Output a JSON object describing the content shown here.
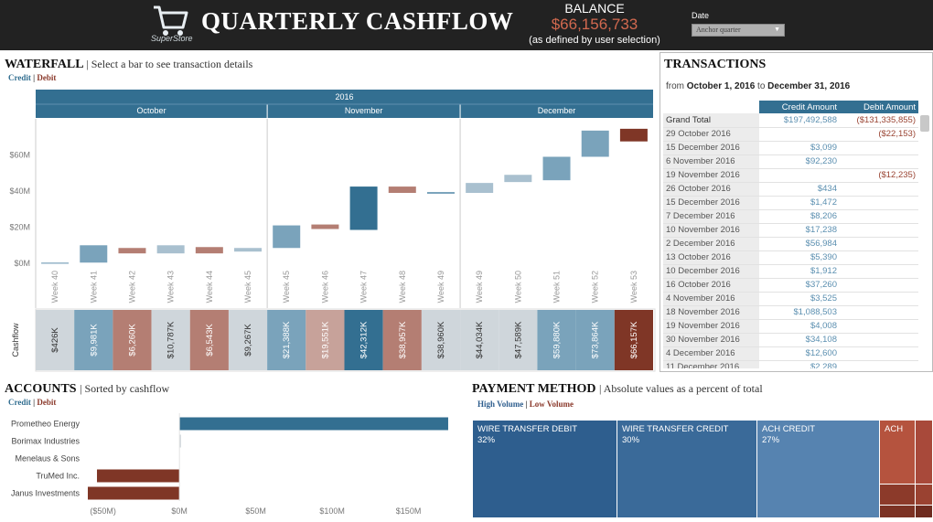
{
  "header": {
    "logo_text": "SuperStore",
    "title": "QUARTERLY CASHFLOW",
    "balance_label": "BALANCE",
    "balance_value": "$66,156,733",
    "balance_note": "(as defined by user selection)",
    "date_label": "Date",
    "date_selected": "Anchor quarter"
  },
  "waterfall": {
    "title": "WATERFALL",
    "subtitle": "| Select a bar to see transaction details",
    "legend_credit": "Credit",
    "legend_sep": "|",
    "legend_debit": "Debit",
    "year": "2016",
    "months": [
      "October",
      "November",
      "December"
    ],
    "row_label": "Cashflow"
  },
  "chart_data": [
    {
      "type": "bar",
      "subtype": "waterfall",
      "categories": [
        "Week 40",
        "Week 41",
        "Week 42",
        "Week 43",
        "Week 44",
        "Week 45",
        "Week 45",
        "Week 46",
        "Week 47",
        "Week 48",
        "Week 49",
        "Week 49",
        "Week 50",
        "Week 51",
        "Week 52",
        "Week 53"
      ],
      "months": [
        "October",
        "October",
        "October",
        "October",
        "October",
        "October",
        "November",
        "November",
        "November",
        "November",
        "November",
        "December",
        "December",
        "December",
        "December",
        "December"
      ],
      "start": [
        0,
        0.4,
        8.5,
        5.5,
        5.5,
        6.5,
        8.5,
        19,
        18.5,
        39,
        38.5,
        39,
        45,
        46,
        59,
        67.5
      ],
      "end": [
        0.4,
        10,
        5.5,
        10,
        9,
        8.5,
        21,
        21.5,
        42.5,
        42.5,
        39.5,
        44.5,
        49,
        59,
        73.5,
        74.5
      ],
      "kind": [
        "credit",
        "credit",
        "debit",
        "credit",
        "debit",
        "credit",
        "credit",
        "debit",
        "credit",
        "debit",
        "credit",
        "credit",
        "credit",
        "credit",
        "credit",
        "debit"
      ],
      "cashflow_labels": [
        "$426K",
        "$9,981K",
        "$6,260K",
        "$10,787K",
        "$6,543K",
        "$9,267K",
        "$21,388K",
        "$19,551K",
        "$42,312K",
        "$38,957K",
        "$38,960K",
        "$44,034K",
        "$47,589K",
        "$59,880K",
        "$73,864K",
        "$66,157K"
      ],
      "cashflow_colors": [
        "#cfd6db",
        "#7aa3bb",
        "#b47e73",
        "#cfd6db",
        "#b47e73",
        "#cfd6db",
        "#7aa3bb",
        "#c7a29a",
        "#336f91",
        "#b47e73",
        "#cfd6db",
        "#cfd6db",
        "#cfd6db",
        "#7aa3bb",
        "#7aa3bb",
        "#7f3626"
      ],
      "yticks": [
        "$0M",
        "$20M",
        "$40M",
        "$60M"
      ],
      "ytick_values": [
        0,
        20,
        40,
        60
      ],
      "ylim": [
        -2,
        80
      ]
    },
    {
      "type": "bar",
      "orientation": "horizontal",
      "categories": [
        "Prometheo Energy",
        "Borimax Industries",
        "Menelaus & Sons",
        "TruMed Inc.",
        "Janus Investments"
      ],
      "values": [
        176,
        1,
        0,
        -54,
        -60
      ],
      "xticks": [
        "($50M)",
        "$0M",
        "$50M",
        "$100M",
        "$150M"
      ],
      "xtick_values": [
        -50,
        0,
        50,
        100,
        150
      ],
      "xlim": [
        -60,
        185
      ]
    }
  ],
  "transactions": {
    "title": "TRANSACTIONS",
    "from_label": "from",
    "from_date": "October 1, 2016",
    "to_label": "to",
    "to_date": "December 31, 2016",
    "col_credit": "Credit Amount",
    "col_debit": "Debit Amount",
    "rows": [
      {
        "date": "Grand Total",
        "credit": "$197,492,588",
        "debit": "($131,335,855)"
      },
      {
        "date": "29 October 2016",
        "credit": "",
        "debit": "($22,153)"
      },
      {
        "date": "15 December 2016",
        "credit": "$3,099",
        "debit": ""
      },
      {
        "date": "6 November 2016",
        "credit": "$92,230",
        "debit": ""
      },
      {
        "date": "19 November 2016",
        "credit": "",
        "debit": "($12,235)"
      },
      {
        "date": "26 October 2016",
        "credit": "$434",
        "debit": ""
      },
      {
        "date": "15 December 2016",
        "credit": "$1,472",
        "debit": ""
      },
      {
        "date": "7 December 2016",
        "credit": "$8,206",
        "debit": ""
      },
      {
        "date": "10 November 2016",
        "credit": "$17,238",
        "debit": ""
      },
      {
        "date": "2 December 2016",
        "credit": "$56,984",
        "debit": ""
      },
      {
        "date": "13 October 2016",
        "credit": "$5,390",
        "debit": ""
      },
      {
        "date": "10 December 2016",
        "credit": "$1,912",
        "debit": ""
      },
      {
        "date": "16 October 2016",
        "credit": "$37,260",
        "debit": ""
      },
      {
        "date": "4 November 2016",
        "credit": "$3,525",
        "debit": ""
      },
      {
        "date": "18 November 2016",
        "credit": "$1,088,503",
        "debit": ""
      },
      {
        "date": "19 November 2016",
        "credit": "$4,008",
        "debit": ""
      },
      {
        "date": "30 November 2016",
        "credit": "$34,108",
        "debit": ""
      },
      {
        "date": "4 December 2016",
        "credit": "$12,600",
        "debit": ""
      },
      {
        "date": "11 December 2016",
        "credit": "$2,289",
        "debit": ""
      }
    ]
  },
  "accounts": {
    "title": "ACCOUNTS",
    "subtitle": "| Sorted by cashflow",
    "legend_credit": "Credit",
    "legend_sep": "|",
    "legend_debit": "Debit"
  },
  "payment": {
    "title": "PAYMENT METHOD",
    "subtitle": "| Absolute values as a percent of total",
    "legend_high": "High Volume",
    "legend_sep": "|",
    "legend_low": "Low Volume",
    "tiles": [
      {
        "name": "WIRE TRANSFER DEBIT",
        "pct": "32%",
        "color": "#2e5e8e"
      },
      {
        "name": "WIRE TRANSFER CREDIT",
        "pct": "30%",
        "color": "#3a6a99"
      },
      {
        "name": "ACH CREDIT",
        "pct": "27%",
        "color": "#5683b0"
      },
      {
        "name": "ACH",
        "pct": "",
        "color": "#b5533e"
      }
    ]
  },
  "colors": {
    "header_bg": "#222222",
    "credit": "#336f91",
    "debit": "#8b3a2c",
    "balance": "#d2694f"
  }
}
